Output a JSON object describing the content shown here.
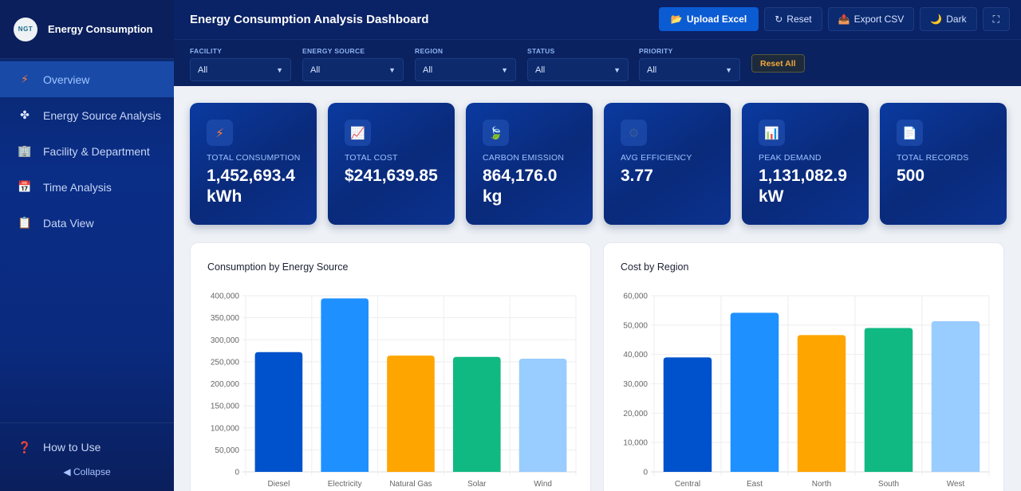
{
  "sidebar": {
    "brand": {
      "logo_text": "NGT",
      "name": "Energy Consumption"
    },
    "items": [
      {
        "label": "Overview",
        "icon": "⚡",
        "icon_name": "lightning-icon",
        "active": true
      },
      {
        "label": "Energy Source Analysis",
        "icon": "✤",
        "icon_name": "clover-icon",
        "active": false
      },
      {
        "label": "Facility & Department",
        "icon": "🏢",
        "icon_name": "building-icon",
        "active": false
      },
      {
        "label": "Time Analysis",
        "icon": "📅",
        "icon_name": "calendar-icon",
        "active": false
      },
      {
        "label": "Data View",
        "icon": "📋",
        "icon_name": "clipboard-icon",
        "active": false
      }
    ],
    "how_to_use": {
      "label": "How to Use",
      "icon": "❓"
    },
    "collapse": {
      "label": "Collapse",
      "icon": "◀"
    }
  },
  "header": {
    "title": "Energy Consumption Analysis Dashboard",
    "buttons": {
      "upload": {
        "icon": "📂",
        "label": "Upload Excel"
      },
      "reset": {
        "icon": "↻",
        "label": "Reset"
      },
      "export": {
        "icon": "📤",
        "label": "Export CSV"
      },
      "theme": {
        "icon": "🌙",
        "label": "Dark"
      },
      "fullscreen": {
        "icon": "⛶"
      }
    }
  },
  "filters": {
    "items": [
      {
        "label": "FACILITY",
        "value": "All"
      },
      {
        "label": "ENERGY SOURCE",
        "value": "All"
      },
      {
        "label": "REGION",
        "value": "All"
      },
      {
        "label": "STATUS",
        "value": "All"
      },
      {
        "label": "PRIORITY",
        "value": "All"
      }
    ],
    "caret": "▼",
    "reset_all": "Reset All"
  },
  "kpis": [
    {
      "icon": "⚡",
      "label": "TOTAL CONSUMPTION",
      "value": "1,452,693.4 kWh"
    },
    {
      "icon": "📈",
      "label": "TOTAL COST",
      "value": "$241,639.85"
    },
    {
      "icon": "🍃",
      "label": "CARBON EMISSION",
      "value": "864,176.0 kg"
    },
    {
      "icon": "⚙",
      "label": "AVG EFFICIENCY",
      "value": "3.77"
    },
    {
      "icon": "📊",
      "label": "PEAK DEMAND",
      "value": "1,131,082.9 kW"
    },
    {
      "icon": "📄",
      "label": "TOTAL RECORDS",
      "value": "500"
    }
  ],
  "colors": [
    "#0052cc",
    "#1e90ff",
    "#ffa500",
    "#10b981",
    "#99ccff"
  ],
  "chart_data": [
    {
      "type": "bar",
      "title": "Consumption by Energy Source",
      "categories": [
        "Diesel",
        "Electricity",
        "Natural Gas",
        "Solar",
        "Wind"
      ],
      "values": [
        272000,
        394000,
        264000,
        261000,
        257000
      ],
      "xlabel": "",
      "ylabel": "",
      "ylim": [
        0,
        400000
      ],
      "yticks": [
        0,
        50000,
        100000,
        150000,
        200000,
        250000,
        300000,
        350000,
        400000
      ],
      "ytick_labels": [
        "0",
        "50,000",
        "100,000",
        "150,000",
        "200,000",
        "250,000",
        "300,000",
        "350,000",
        "400,000"
      ],
      "grid": true,
      "legend": "none"
    },
    {
      "type": "bar",
      "title": "Cost by Region",
      "categories": [
        "Central",
        "East",
        "North",
        "South",
        "West"
      ],
      "values": [
        39000,
        54200,
        46600,
        49000,
        51300
      ],
      "xlabel": "",
      "ylabel": "",
      "ylim": [
        0,
        60000
      ],
      "yticks": [
        0,
        10000,
        20000,
        30000,
        40000,
        50000,
        60000
      ],
      "ytick_labels": [
        "0",
        "10,000",
        "20,000",
        "30,000",
        "40,000",
        "50,000",
        "60,000"
      ],
      "grid": true,
      "legend": "none"
    }
  ]
}
